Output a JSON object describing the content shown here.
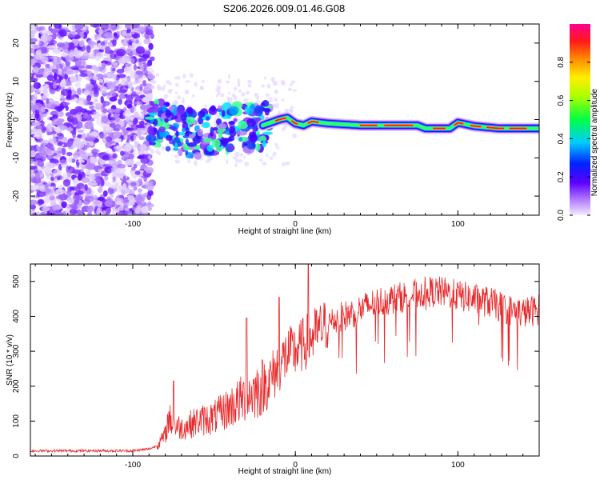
{
  "title": "S206.2026.009.01.46.G08",
  "chart_data": [
    {
      "type": "heatmap",
      "name": "spectrogram",
      "xlabel": "Height of straight line (km)",
      "ylabel": "Frequency (Hz)",
      "xlim": [
        -163,
        150
      ],
      "ylim": [
        -25,
        25
      ],
      "xticks": [
        -100,
        0,
        100
      ],
      "yticks": [
        -20,
        -10,
        0,
        10,
        20
      ],
      "signal_band_center_hz": [
        [
          -90,
          -1
        ],
        [
          -80,
          -1.5
        ],
        [
          -70,
          -3
        ],
        [
          -60,
          -4
        ],
        [
          -50,
          -3
        ],
        [
          -40,
          -2
        ],
        [
          -30,
          -2
        ],
        [
          -20,
          -1.5
        ],
        [
          -10,
          0
        ],
        [
          -5,
          0.5
        ],
        [
          0,
          -1
        ],
        [
          5,
          -1.5
        ],
        [
          10,
          -0.5
        ],
        [
          20,
          -1
        ],
        [
          40,
          -1.5
        ],
        [
          60,
          -1.5
        ],
        [
          75,
          -1.5
        ],
        [
          80,
          -2.3
        ],
        [
          95,
          -2.3
        ],
        [
          100,
          -0.8
        ],
        [
          110,
          -1.7
        ],
        [
          125,
          -2.3
        ],
        [
          150,
          -2.3
        ]
      ],
      "colorbar": {
        "label": "Normalized spectral amplitude",
        "ticks": [
          "0.0",
          "0.2",
          "0.4",
          "0.6",
          "0.8"
        ],
        "range": [
          0,
          1
        ]
      }
    },
    {
      "type": "line",
      "name": "snr",
      "xlabel": "Height of straight line (km)",
      "ylabel": "SNR (10 * v/v)",
      "xlim": [
        -163,
        150
      ],
      "ylim": [
        0,
        550
      ],
      "xticks": [
        -100,
        0,
        100
      ],
      "yticks": [
        0,
        100,
        200,
        300,
        400,
        500
      ],
      "color": "#e8282a",
      "series": [
        {
          "name": "SNR",
          "x": [
            -163,
            -140,
            -120,
            -100,
            -90,
            -85,
            -80,
            -78,
            -75,
            -70,
            -60,
            -50,
            -40,
            -30,
            -20,
            -15,
            -10,
            -5,
            0,
            5,
            10,
            20,
            30,
            40,
            50,
            60,
            70,
            80,
            90,
            100,
            110,
            120,
            130,
            140,
            150
          ],
          "values": [
            15,
            15,
            15,
            15,
            20,
            30,
            60,
            110,
            90,
            80,
            100,
            110,
            140,
            170,
            200,
            220,
            260,
            290,
            300,
            320,
            340,
            380,
            400,
            420,
            440,
            450,
            460,
            470,
            470,
            460,
            450,
            440,
            420,
            410,
            420
          ],
          "peaks": [
            [
              -75,
              215
            ],
            [
              -30,
              395
            ],
            [
              -10,
              455
            ],
            [
              8,
              555
            ]
          ]
        }
      ]
    }
  ]
}
